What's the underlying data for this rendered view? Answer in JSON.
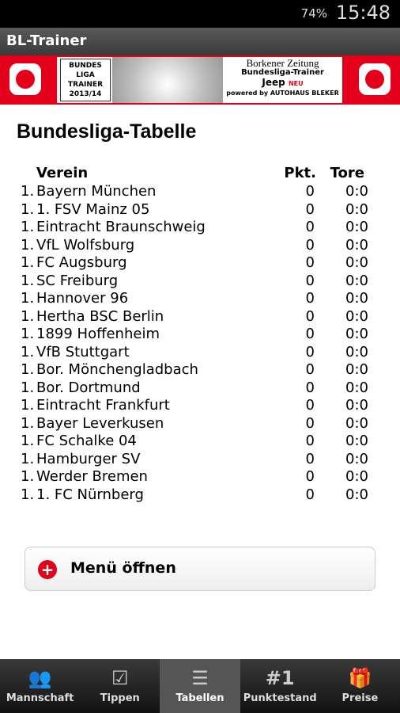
{
  "status_bar": {
    "battery": "74%",
    "time": "15:48"
  },
  "app_title": "BL-Trainer",
  "banner": {
    "logo": [
      "BUNDES",
      "LIGA",
      "TRAINER",
      "2013/14"
    ],
    "publisher": "Borkener Zeitung",
    "product": "Bundesliga-Trainer",
    "brand": "Jeep",
    "badge": "NEU",
    "sponsor": "powered by AUTOHAUS BLEKER"
  },
  "heading": "Bundesliga-Tabelle",
  "table": {
    "header": [
      "Verein",
      "Pkt.",
      "Tore"
    ],
    "rows": [
      [
        "1.",
        "Bayern München",
        0,
        "0:0"
      ],
      [
        "1.",
        "1. FSV Mainz 05",
        0,
        "0:0"
      ],
      [
        "1.",
        "Eintracht Braunschweig",
        0,
        "0:0"
      ],
      [
        "1.",
        "VfL Wolfsburg",
        0,
        "0:0"
      ],
      [
        "1.",
        "FC Augsburg",
        0,
        "0:0"
      ],
      [
        "1.",
        "SC Freiburg",
        0,
        "0:0"
      ],
      [
        "1.",
        "Hannover 96",
        0,
        "0:0"
      ],
      [
        "1.",
        "Hertha BSC Berlin",
        0,
        "0:0"
      ],
      [
        "1.",
        "1899 Hoffenheim",
        0,
        "0:0"
      ],
      [
        "1.",
        "VfB Stuttgart",
        0,
        "0:0"
      ],
      [
        "1.",
        "Bor. Mönchengladbach",
        0,
        "0:0"
      ],
      [
        "1.",
        "Bor. Dortmund",
        0,
        "0:0"
      ],
      [
        "1.",
        "Eintracht Frankfurt",
        0,
        "0:0"
      ],
      [
        "1.",
        "Bayer Leverkusen",
        0,
        "0:0"
      ],
      [
        "1.",
        "FC Schalke 04",
        0,
        "0:0"
      ],
      [
        "1.",
        "Hamburger SV",
        0,
        "0:0"
      ],
      [
        "1.",
        "Werder Bremen",
        0,
        "0:0"
      ],
      [
        "1.",
        "1. FC Nürnberg",
        0,
        "0:0"
      ]
    ]
  },
  "menu_button": "Menü öffnen",
  "tabs": [
    {
      "icon": null,
      "label": "Mannschaft"
    },
    {
      "icon": null,
      "label": "Tippen"
    },
    {
      "icon": null,
      "label": "Tabellen"
    },
    {
      "icon": "#1",
      "label": "Punktestand"
    },
    {
      "icon": null,
      "label": "Preise"
    }
  ]
}
